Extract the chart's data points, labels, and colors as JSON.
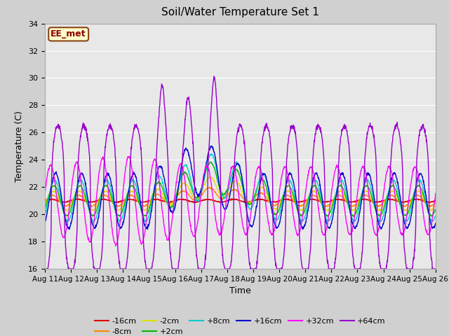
{
  "title": "Soil/Water Temperature Set 1",
  "xlabel": "Time",
  "ylabel": "Temperature (C)",
  "ylim": [
    16,
    34
  ],
  "yticks": [
    16,
    18,
    20,
    22,
    24,
    26,
    28,
    30,
    32,
    34
  ],
  "xtick_labels": [
    "Aug 11",
    "Aug 12",
    "Aug 13",
    "Aug 14",
    "Aug 15",
    "Aug 16",
    "Aug 17",
    "Aug 18",
    "Aug 19",
    "Aug 20",
    "Aug 21",
    "Aug 22",
    "Aug 23",
    "Aug 24",
    "Aug 25",
    "Aug 26"
  ],
  "fig_bg": "#d0d0d0",
  "plot_bg": "#e8e8e8",
  "label_box_text": "EE_met",
  "label_box_bg": "#ffffcc",
  "label_box_border": "#8b4513",
  "label_box_text_color": "#8b0000",
  "colors": {
    "-16cm": "#dd0000",
    "-8cm": "#ff8800",
    "-2cm": "#dddd00",
    "+2cm": "#00bb00",
    "+8cm": "#00cccc",
    "+16cm": "#0000cc",
    "+32cm": "#ff00ff",
    "+64cm": "#9900cc"
  },
  "base_temp": 21.0
}
